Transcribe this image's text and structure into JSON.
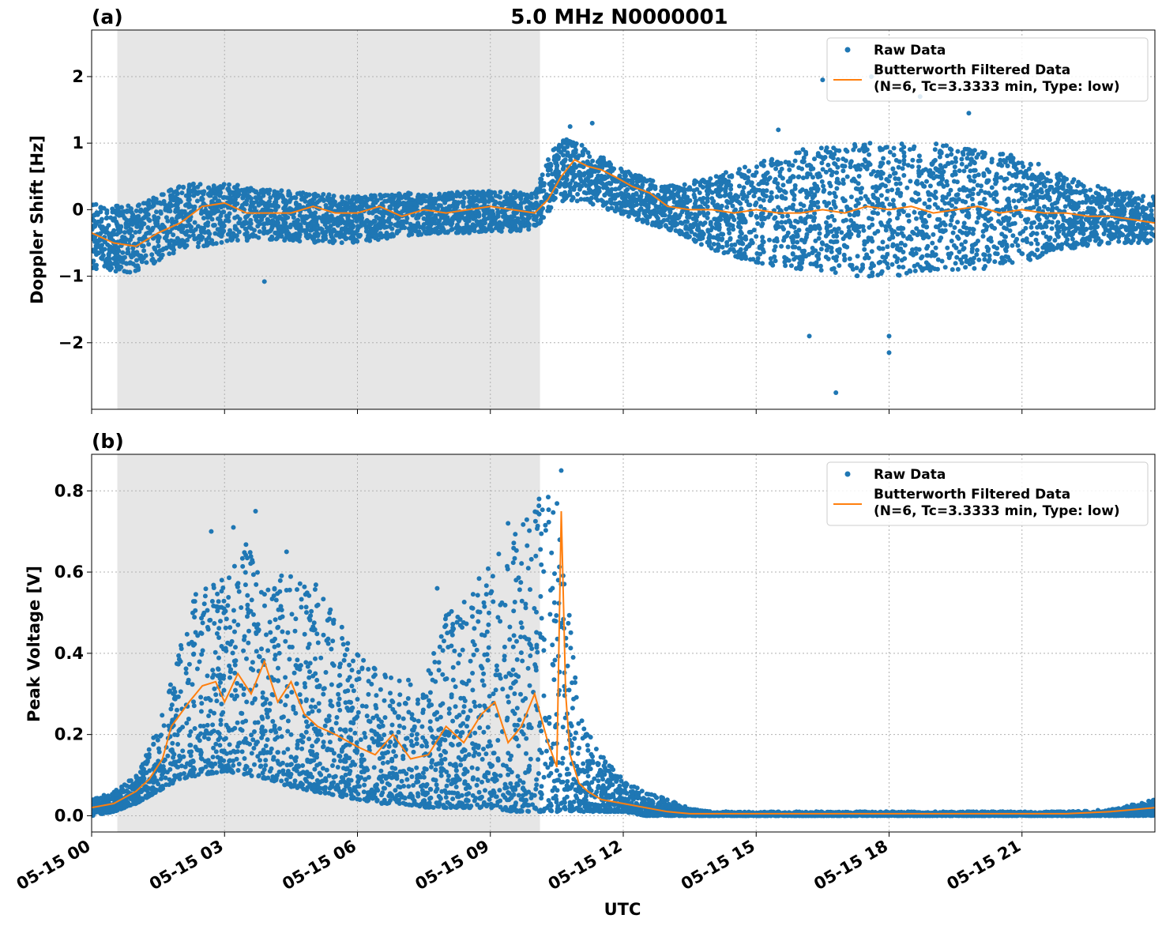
{
  "figure": {
    "title": "5.0 MHz N0000001",
    "xlabel": "UTC",
    "x_ticks": [
      "05-15 00",
      "05-15 03",
      "05-15 06",
      "05-15 09",
      "05-15 12",
      "05-15 15",
      "05-15 18",
      "05-15 21"
    ]
  },
  "colors": {
    "raw": "#1f77b4",
    "filtered": "#ff7f0e",
    "night_shading": "#e6e6e6",
    "grid": "#b0b0b0"
  },
  "chart_data": [
    {
      "type": "scatter",
      "panel_label": "(a)",
      "ylabel": "Doppler Shift [Hz]",
      "xlim_hours": [
        0,
        24
      ],
      "ylim": [
        -3.0,
        2.7
      ],
      "y_ticks": [
        2,
        1,
        0,
        -1,
        -2
      ],
      "y_tick_labels": [
        "2",
        "1",
        "0",
        "−1",
        "−2"
      ],
      "grid": true,
      "legend_position": "top-right",
      "shaded_interval_hours": [
        0.58,
        10.12
      ],
      "series": [
        {
          "name": "Raw Data",
          "kind": "points",
          "envelope": {
            "x": [
              0,
              1,
              2,
              3,
              4,
              5,
              6,
              7,
              8,
              9,
              10,
              10.5,
              11,
              11.5,
              12,
              13,
              14,
              15,
              16,
              17,
              18,
              19,
              20,
              21,
              22,
              23,
              24
            ],
            "lower": [
              -0.9,
              -0.95,
              -0.6,
              -0.5,
              -0.45,
              -0.5,
              -0.5,
              -0.4,
              -0.35,
              -0.35,
              -0.3,
              0.1,
              0.1,
              0.05,
              -0.1,
              -0.3,
              -0.6,
              -0.8,
              -0.9,
              -1.0,
              -1.0,
              -0.95,
              -0.9,
              -0.8,
              -0.6,
              -0.5,
              -0.5
            ],
            "upper": [
              0.1,
              0.05,
              0.4,
              0.4,
              0.3,
              0.25,
              0.2,
              0.25,
              0.25,
              0.3,
              0.25,
              1.1,
              1.0,
              0.8,
              0.6,
              0.35,
              0.5,
              0.7,
              0.9,
              1.0,
              1.0,
              1.0,
              0.9,
              0.8,
              0.5,
              0.3,
              0.2
            ]
          },
          "outliers": [
            {
              "x": 16.5,
              "y": 1.95
            },
            {
              "x": 18.7,
              "y": 1.7
            },
            {
              "x": 16.8,
              "y": -2.75
            },
            {
              "x": 18.0,
              "y": -2.15
            },
            {
              "x": 17.6,
              "y": 2.0
            },
            {
              "x": 3.9,
              "y": -1.08
            },
            {
              "x": 18.0,
              "y": -1.9
            },
            {
              "x": 16.2,
              "y": -1.9
            },
            {
              "x": 10.8,
              "y": 1.25
            },
            {
              "x": 11.3,
              "y": 1.3
            },
            {
              "x": 15.5,
              "y": 1.2
            },
            {
              "x": 19.8,
              "y": 1.45
            }
          ]
        },
        {
          "name": "Butterworth Filtered Data\n(N=6, Tc=3.3333 min, Type: low)",
          "kind": "line",
          "x": [
            0,
            0.5,
            1,
            1.5,
            2,
            2.5,
            3,
            3.5,
            4,
            4.5,
            5,
            5.5,
            6,
            6.5,
            7,
            7.5,
            8,
            8.5,
            9,
            9.5,
            10,
            10.3,
            10.6,
            10.9,
            11.2,
            11.5,
            11.8,
            12.2,
            12.6,
            13,
            13.5,
            14,
            14.5,
            15,
            15.5,
            16,
            16.5,
            17,
            17.5,
            18,
            18.5,
            19,
            19.5,
            20,
            20.5,
            21,
            21.5,
            22,
            22.5,
            23,
            23.5,
            24
          ],
          "y": [
            -0.35,
            -0.5,
            -0.55,
            -0.35,
            -0.2,
            0.05,
            0.1,
            -0.05,
            -0.05,
            -0.05,
            0.05,
            -0.05,
            -0.05,
            0.05,
            -0.1,
            0.0,
            -0.05,
            0.0,
            0.05,
            0.0,
            -0.05,
            0.15,
            0.5,
            0.75,
            0.65,
            0.6,
            0.5,
            0.35,
            0.25,
            0.05,
            0.0,
            0.0,
            -0.05,
            0.0,
            -0.05,
            -0.05,
            0.0,
            -0.05,
            0.05,
            0.0,
            0.05,
            -0.05,
            0.0,
            0.05,
            -0.05,
            0.0,
            -0.05,
            -0.05,
            -0.1,
            -0.1,
            -0.15,
            -0.2
          ]
        }
      ]
    },
    {
      "type": "scatter",
      "panel_label": "(b)",
      "ylabel": "Peak Voltage [V]",
      "xlim_hours": [
        0,
        24
      ],
      "ylim": [
        -0.04,
        0.89
      ],
      "y_ticks": [
        0.8,
        0.6,
        0.4,
        0.2,
        0.0
      ],
      "y_tick_labels": [
        "0.8",
        "0.6",
        "0.4",
        "0.2",
        "0.0"
      ],
      "grid": true,
      "legend_position": "top-right",
      "shaded_interval_hours": [
        0.58,
        10.12
      ],
      "series": [
        {
          "name": "Raw Data",
          "kind": "points",
          "envelope": {
            "x": [
              0,
              0.5,
              1,
              1.5,
              2,
              2.5,
              3,
              3.5,
              4,
              4.5,
              5,
              5.5,
              6,
              6.5,
              7,
              7.5,
              8,
              8.5,
              9,
              9.5,
              10,
              10.5,
              11,
              11.5,
              12,
              12.5,
              13,
              13.5,
              14,
              15,
              16,
              17,
              18,
              19,
              20,
              21,
              22,
              23,
              24
            ],
            "lower": [
              0.0,
              0.01,
              0.03,
              0.06,
              0.09,
              0.1,
              0.11,
              0.1,
              0.09,
              0.07,
              0.06,
              0.05,
              0.04,
              0.03,
              0.03,
              0.02,
              0.02,
              0.02,
              0.02,
              0.01,
              0.01,
              0.01,
              0.01,
              0.01,
              0.01,
              0.0,
              0.0,
              0.0,
              0.0,
              0.0,
              0.0,
              0.0,
              0.0,
              0.0,
              0.0,
              0.0,
              0.0,
              0.0,
              0.0
            ],
            "upper": [
              0.04,
              0.06,
              0.1,
              0.22,
              0.42,
              0.62,
              0.58,
              0.68,
              0.58,
              0.6,
              0.58,
              0.5,
              0.4,
              0.36,
              0.34,
              0.32,
              0.5,
              0.55,
              0.62,
              0.7,
              0.78,
              0.84,
              0.25,
              0.15,
              0.09,
              0.06,
              0.04,
              0.02,
              0.01,
              0.01,
              0.01,
              0.01,
              0.01,
              0.01,
              0.01,
              0.01,
              0.01,
              0.015,
              0.04
            ]
          },
          "outliers": [
            {
              "x": 2.7,
              "y": 0.7
            },
            {
              "x": 3.2,
              "y": 0.71
            },
            {
              "x": 3.7,
              "y": 0.75
            },
            {
              "x": 9.4,
              "y": 0.72
            },
            {
              "x": 10.6,
              "y": 0.85
            },
            {
              "x": 10.1,
              "y": 0.78
            },
            {
              "x": 4.4,
              "y": 0.65
            },
            {
              "x": 7.8,
              "y": 0.56
            }
          ]
        },
        {
          "name": "Butterworth Filtered Data\n(N=6, Tc=3.3333 min, Type: low)",
          "kind": "line",
          "x": [
            0,
            0.5,
            1,
            1.3,
            1.6,
            1.8,
            2.0,
            2.2,
            2.5,
            2.8,
            3.0,
            3.3,
            3.6,
            3.9,
            4.2,
            4.5,
            4.8,
            5.1,
            5.5,
            6,
            6.4,
            6.8,
            7.2,
            7.6,
            8.0,
            8.4,
            8.8,
            9.1,
            9.4,
            9.7,
            10.0,
            10.3,
            10.5,
            10.6,
            10.7,
            10.8,
            11.0,
            11.2,
            11.5,
            12,
            12.5,
            13,
            13.5,
            14,
            16,
            18,
            20,
            22,
            23,
            24
          ],
          "y": [
            0.02,
            0.03,
            0.06,
            0.09,
            0.14,
            0.22,
            0.25,
            0.28,
            0.32,
            0.33,
            0.28,
            0.35,
            0.3,
            0.38,
            0.28,
            0.33,
            0.25,
            0.22,
            0.2,
            0.17,
            0.15,
            0.2,
            0.14,
            0.15,
            0.22,
            0.18,
            0.25,
            0.28,
            0.18,
            0.22,
            0.3,
            0.18,
            0.12,
            0.75,
            0.3,
            0.15,
            0.08,
            0.06,
            0.04,
            0.03,
            0.02,
            0.01,
            0.005,
            0.005,
            0.005,
            0.005,
            0.005,
            0.005,
            0.01,
            0.02
          ]
        }
      ]
    }
  ]
}
